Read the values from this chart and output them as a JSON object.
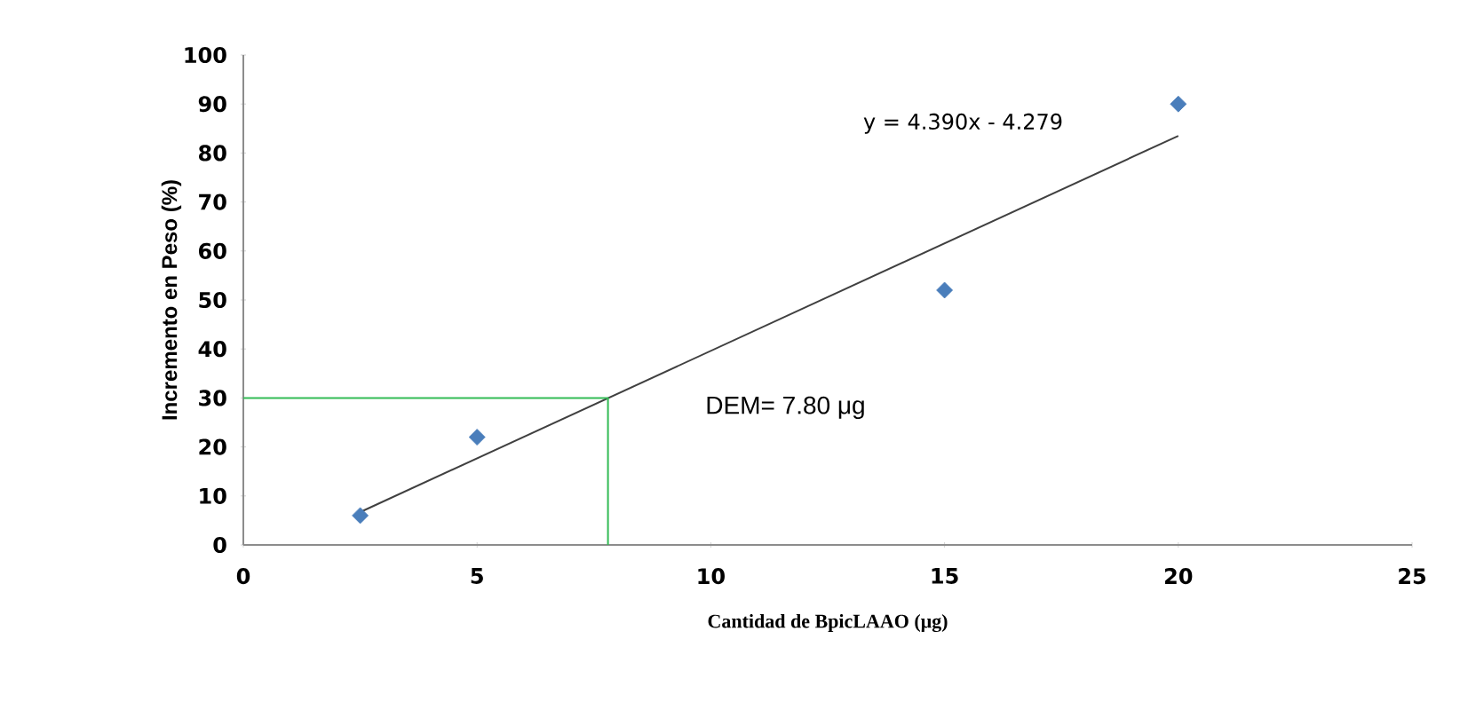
{
  "chart_data": {
    "type": "scatter",
    "xlabel": "Cantidad de BpicLAAO  (μg)",
    "ylabel": "Incremento en Peso (%)",
    "xlim": [
      0,
      25
    ],
    "ylim": [
      0,
      100
    ],
    "xticks": [
      0,
      5,
      10,
      15,
      20,
      25
    ],
    "yticks": [
      0,
      10,
      20,
      30,
      40,
      50,
      60,
      70,
      80,
      90,
      100
    ],
    "grid": false,
    "series": [
      {
        "marker": "diamond",
        "color": "#4a7ebb",
        "x": [
          2.5,
          5,
          15,
          20
        ],
        "values": [
          6,
          22,
          52,
          90
        ]
      },
      {
        "type": "line",
        "marker": "none",
        "color": "#404040",
        "x": [
          2.5,
          20
        ],
        "values": [
          6.7,
          83.5
        ]
      },
      {
        "type": "line",
        "marker": "none",
        "color": "#33bb55",
        "x": [
          0,
          7.8,
          7.8
        ],
        "values": [
          30,
          30,
          0
        ]
      }
    ],
    "annotations": [
      "y = 4.390x - 4.279",
      "DEM= 7.80 μg"
    ]
  }
}
